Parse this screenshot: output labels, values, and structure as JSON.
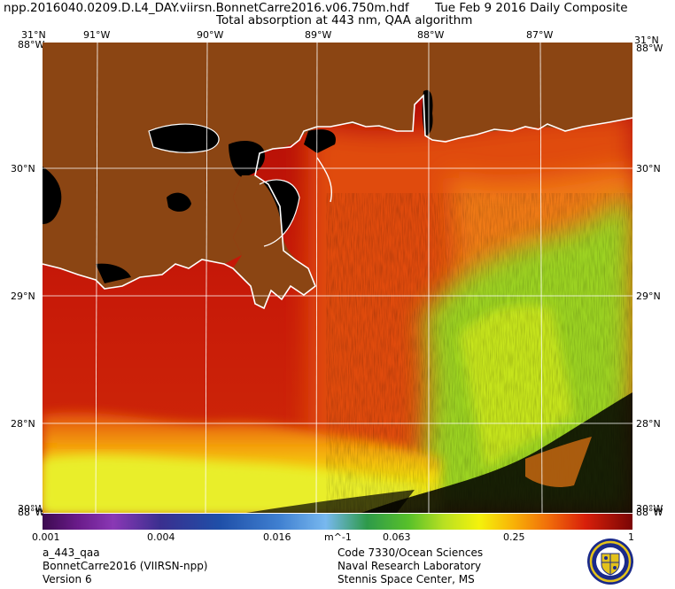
{
  "header": {
    "filename": "npp.2016040.0209.D.L4_DAY.viirsn.BonnetCarre2016.v06.750m.hdf",
    "date_label": "Tue Feb  9 2016 Daily Composite",
    "product_title": "Total absorption at 443 nm, QAA algorithm"
  },
  "map": {
    "top_labels": {
      "corner_left": "31°N",
      "lon1": "91°W",
      "lon2": "90°W",
      "lon3": "89°W",
      "lon4": "88°W",
      "lon5": "87°W",
      "corner_right": "31°N"
    },
    "corner_overlays": {
      "tl": "88°W",
      "tr": "88°W",
      "bl": "88°W",
      "br": "88°W",
      "bl_under": "30°W",
      "br_under": "30°W"
    },
    "left_labels": {
      "lat30": "30°N",
      "lat29": "29°N",
      "lat28": "28°N"
    },
    "right_labels": {
      "lat30": "30°N",
      "lat29": "29°N",
      "lat28": "28°N"
    },
    "colors": {
      "land": "#8b4513",
      "no_data": "#000000",
      "coast": "#ffffff",
      "grid": "#ffffff"
    }
  },
  "colorbar": {
    "tick_0": "0.001",
    "tick_1": "0.004",
    "tick_2": "0.016",
    "unit": "m^-1",
    "tick_3": "0.063",
    "tick_4": "0.25",
    "tick_5": "1"
  },
  "footer": {
    "left_line1": "a_443_qaa",
    "left_line2": "BonnetCarre2016 (VIIRSN-npp)",
    "left_line3": "Version 6",
    "right_line1": "Code 7330/Ocean Sciences",
    "right_line2": "Naval Research Laboratory",
    "right_line3": "Stennis Space Center, MS",
    "logo": "nrl-seal-logo"
  }
}
